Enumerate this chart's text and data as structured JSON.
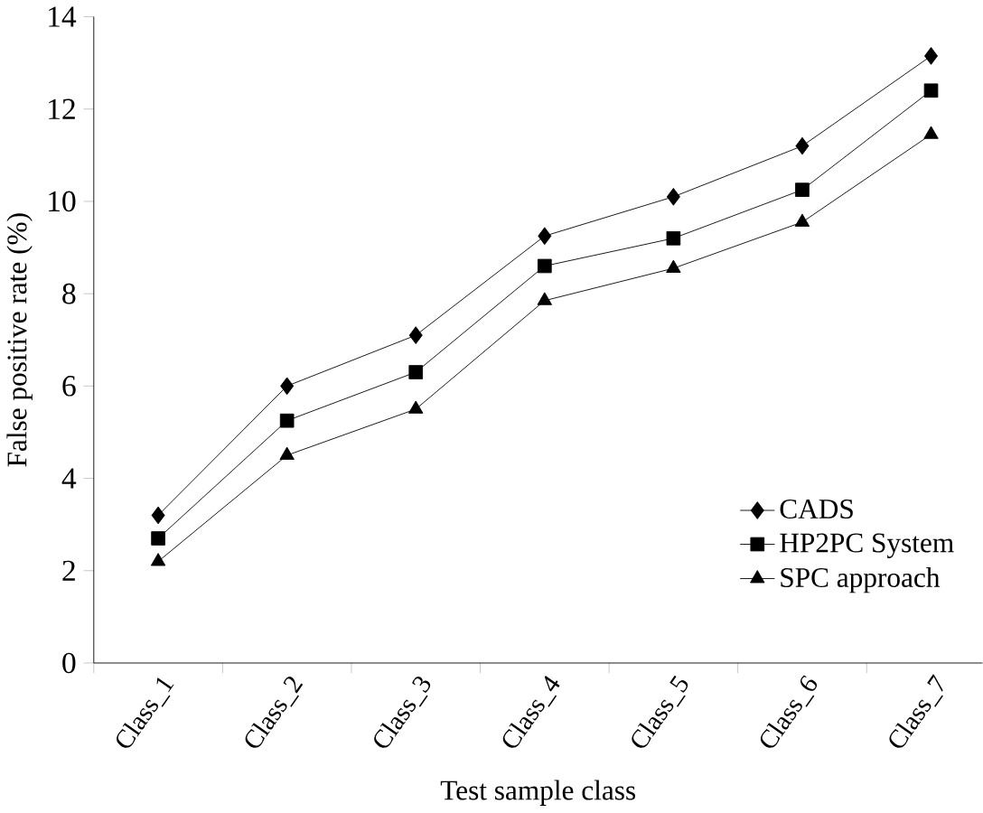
{
  "chart_data": {
    "type": "line",
    "xlabel": "Test sample class",
    "ylabel": "False positive rate (%)",
    "categories": [
      "Class_1",
      "Class_2",
      "Class_3",
      "Class_4",
      "Class_5",
      "Class_6",
      "Class_7"
    ],
    "series": [
      {
        "name": "CADS",
        "color": "#000000",
        "marker": "diamond",
        "values": [
          3.2,
          6.0,
          7.1,
          9.25,
          10.1,
          11.2,
          13.15
        ]
      },
      {
        "name": "HP2PC System",
        "color": "#000000",
        "marker": "square",
        "values": [
          2.7,
          5.25,
          6.3,
          8.6,
          9.2,
          10.25,
          12.4
        ]
      },
      {
        "name": "SPC approach",
        "color": "#000000",
        "marker": "triangle",
        "values": [
          2.2,
          4.5,
          5.5,
          7.85,
          8.55,
          9.55,
          11.45
        ]
      }
    ],
    "ylim": [
      0,
      14
    ],
    "yticks": [
      0,
      2,
      4,
      6,
      8,
      10,
      12,
      14
    ],
    "grid": false,
    "legend": "bottom right",
    "line_style": "solid"
  }
}
